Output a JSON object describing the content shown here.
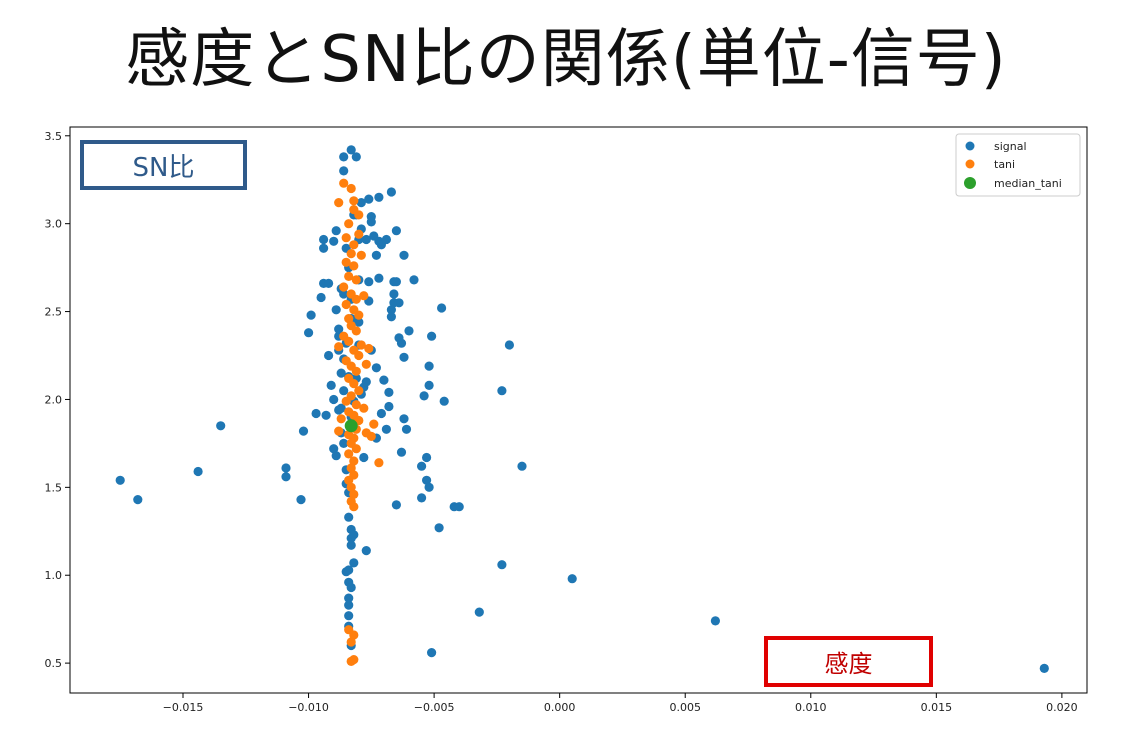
{
  "slide_title": "感度とSN比の関係(単位-信号)",
  "callouts": {
    "y_axis_label": "SN比",
    "x_axis_label": "感度"
  },
  "colors": {
    "signal": "#1f77b4",
    "tani": "#ff7f0e",
    "median_tani": "#2ca02c",
    "ylabel_box": "#2f5a8a",
    "xlabel_box": "#e00000"
  },
  "chart_data": {
    "type": "scatter",
    "title": "",
    "xlabel": "感度",
    "ylabel": "SN比",
    "xlim": [
      -0.0195,
      0.021
    ],
    "ylim": [
      0.33,
      3.55
    ],
    "xticks": [
      -0.015,
      -0.01,
      -0.005,
      0.0,
      0.005,
      0.01,
      0.015,
      0.02
    ],
    "xtick_labels": [
      "−0.015",
      "−0.010",
      "−0.005",
      "0.000",
      "0.005",
      "0.010",
      "0.015",
      "0.020"
    ],
    "yticks": [
      0.5,
      1.0,
      1.5,
      2.0,
      2.5,
      3.0,
      3.5
    ],
    "ytick_labels": [
      "0.5",
      "1.0",
      "1.5",
      "2.0",
      "2.5",
      "3.0",
      "3.5"
    ],
    "grid": false,
    "legend_position": "top-right",
    "series": [
      {
        "name": "signal",
        "color": "#1f77b4",
        "points": [
          [
            -0.0175,
            1.54
          ],
          [
            -0.0168,
            1.43
          ],
          [
            -0.0144,
            1.59
          ],
          [
            -0.0135,
            1.85
          ],
          [
            -0.0109,
            1.61
          ],
          [
            -0.0109,
            1.56
          ],
          [
            -0.0103,
            1.43
          ],
          [
            -0.0102,
            1.82
          ],
          [
            -0.01,
            2.38
          ],
          [
            -0.0099,
            2.48
          ],
          [
            -0.0097,
            1.92
          ],
          [
            -0.0095,
            2.58
          ],
          [
            -0.0094,
            2.66
          ],
          [
            -0.0094,
            2.86
          ],
          [
            -0.0094,
            2.91
          ],
          [
            -0.0093,
            1.91
          ],
          [
            -0.0092,
            2.66
          ],
          [
            -0.0092,
            2.25
          ],
          [
            -0.0091,
            2.08
          ],
          [
            -0.009,
            2.9
          ],
          [
            -0.009,
            1.72
          ],
          [
            -0.009,
            2.0
          ],
          [
            -0.0089,
            1.68
          ],
          [
            -0.0089,
            2.96
          ],
          [
            -0.0089,
            2.51
          ],
          [
            -0.0088,
            2.28
          ],
          [
            -0.0088,
            2.36
          ],
          [
            -0.0088,
            2.4
          ],
          [
            -0.0088,
            1.94
          ],
          [
            -0.0087,
            2.63
          ],
          [
            -0.0087,
            2.15
          ],
          [
            -0.0087,
            1.95
          ],
          [
            -0.0087,
            1.81
          ],
          [
            -0.0086,
            3.38
          ],
          [
            -0.0086,
            3.3
          ],
          [
            -0.0086,
            2.6
          ],
          [
            -0.0086,
            2.23
          ],
          [
            -0.0086,
            2.05
          ],
          [
            -0.0086,
            1.75
          ],
          [
            -0.0085,
            1.02
          ],
          [
            -0.0085,
            2.86
          ],
          [
            -0.0085,
            1.6
          ],
          [
            -0.0085,
            2.32
          ],
          [
            -0.0085,
            1.52
          ],
          [
            -0.0084,
            2.13
          ],
          [
            -0.0084,
            1.03
          ],
          [
            -0.0084,
            0.96
          ],
          [
            -0.0084,
            0.87
          ],
          [
            -0.0084,
            0.83
          ],
          [
            -0.0084,
            0.77
          ],
          [
            -0.0084,
            0.71
          ],
          [
            -0.0084,
            2.75
          ],
          [
            -0.0084,
            1.47
          ],
          [
            -0.0084,
            1.33
          ],
          [
            -0.0083,
            3.42
          ],
          [
            -0.0083,
            2.57
          ],
          [
            -0.0083,
            2.46
          ],
          [
            -0.0083,
            1.9
          ],
          [
            -0.0083,
            1.26
          ],
          [
            -0.0083,
            1.21
          ],
          [
            -0.0083,
            1.17
          ],
          [
            -0.0083,
            0.93
          ],
          [
            -0.0083,
            0.6
          ],
          [
            -0.0082,
            3.05
          ],
          [
            -0.0082,
            1.99
          ],
          [
            -0.0082,
            1.23
          ],
          [
            -0.0082,
            1.07
          ],
          [
            -0.0082,
            1.99
          ],
          [
            -0.0081,
            3.38
          ],
          [
            -0.0081,
            3.05
          ],
          [
            -0.0081,
            2.12
          ],
          [
            -0.008,
            2.91
          ],
          [
            -0.008,
            2.68
          ],
          [
            -0.008,
            2.44
          ],
          [
            -0.008,
            2.31
          ],
          [
            -0.0079,
            3.12
          ],
          [
            -0.0079,
            2.97
          ],
          [
            -0.0079,
            2.03
          ],
          [
            -0.0078,
            1.67
          ],
          [
            -0.0078,
            2.07
          ],
          [
            -0.0077,
            2.91
          ],
          [
            -0.0077,
            2.1
          ],
          [
            -0.0077,
            1.14
          ],
          [
            -0.0076,
            3.14
          ],
          [
            -0.0076,
            2.67
          ],
          [
            -0.0076,
            2.56
          ],
          [
            -0.0075,
            3.04
          ],
          [
            -0.0075,
            3.01
          ],
          [
            -0.0075,
            2.28
          ],
          [
            -0.0074,
            2.93
          ],
          [
            -0.0073,
            2.82
          ],
          [
            -0.0073,
            2.18
          ],
          [
            -0.0073,
            1.78
          ],
          [
            -0.0072,
            3.15
          ],
          [
            -0.0072,
            2.9
          ],
          [
            -0.0072,
            2.69
          ],
          [
            -0.0071,
            2.88
          ],
          [
            -0.0071,
            1.92
          ],
          [
            -0.007,
            2.11
          ],
          [
            -0.0069,
            1.83
          ],
          [
            -0.0069,
            2.91
          ],
          [
            -0.0068,
            2.04
          ],
          [
            -0.0068,
            1.96
          ],
          [
            -0.0067,
            3.18
          ],
          [
            -0.0067,
            2.47
          ],
          [
            -0.0067,
            2.51
          ],
          [
            -0.0066,
            2.67
          ],
          [
            -0.0066,
            2.6
          ],
          [
            -0.0066,
            2.55
          ],
          [
            -0.0065,
            2.96
          ],
          [
            -0.0065,
            2.67
          ],
          [
            -0.0065,
            1.4
          ],
          [
            -0.0064,
            2.55
          ],
          [
            -0.0064,
            2.35
          ],
          [
            -0.0063,
            1.7
          ],
          [
            -0.0063,
            2.32
          ],
          [
            -0.0062,
            2.24
          ],
          [
            -0.0062,
            2.82
          ],
          [
            -0.0062,
            1.89
          ],
          [
            -0.0061,
            1.83
          ],
          [
            -0.006,
            2.39
          ],
          [
            -0.0058,
            2.68
          ],
          [
            -0.0055,
            1.62
          ],
          [
            -0.0055,
            1.44
          ],
          [
            -0.0054,
            2.02
          ],
          [
            -0.0053,
            1.67
          ],
          [
            -0.0053,
            1.54
          ],
          [
            -0.0052,
            1.5
          ],
          [
            -0.0052,
            2.19
          ],
          [
            -0.0052,
            2.08
          ],
          [
            -0.0051,
            2.36
          ],
          [
            -0.0051,
            0.56
          ],
          [
            -0.0048,
            1.27
          ],
          [
            -0.0047,
            2.52
          ],
          [
            -0.0046,
            1.99
          ],
          [
            -0.0042,
            1.39
          ],
          [
            -0.004,
            1.39
          ],
          [
            -0.0032,
            0.79
          ],
          [
            -0.0023,
            2.05
          ],
          [
            -0.0023,
            1.06
          ],
          [
            -0.002,
            2.31
          ],
          [
            -0.0015,
            1.62
          ],
          [
            0.0005,
            0.98
          ],
          [
            0.0062,
            0.74
          ],
          [
            0.0193,
            0.47
          ]
        ]
      },
      {
        "name": "tani",
        "color": "#ff7f0e",
        "points": [
          [
            -0.0086,
            3.23
          ],
          [
            -0.0088,
            3.12
          ],
          [
            -0.0083,
            3.2
          ],
          [
            -0.0082,
            3.13
          ],
          [
            -0.0082,
            3.08
          ],
          [
            -0.0084,
            3.0
          ],
          [
            -0.008,
            3.05
          ],
          [
            -0.0085,
            2.92
          ],
          [
            -0.0082,
            2.88
          ],
          [
            -0.008,
            2.94
          ],
          [
            -0.0083,
            2.83
          ],
          [
            -0.0085,
            2.78
          ],
          [
            -0.0082,
            2.76
          ],
          [
            -0.0079,
            2.82
          ],
          [
            -0.0084,
            2.7
          ],
          [
            -0.0081,
            2.68
          ],
          [
            -0.0086,
            2.64
          ],
          [
            -0.0083,
            2.6
          ],
          [
            -0.0081,
            2.57
          ],
          [
            -0.0078,
            2.59
          ],
          [
            -0.0085,
            2.54
          ],
          [
            -0.0082,
            2.51
          ],
          [
            -0.0084,
            2.46
          ],
          [
            -0.008,
            2.48
          ],
          [
            -0.0083,
            2.42
          ],
          [
            -0.0081,
            2.39
          ],
          [
            -0.0086,
            2.36
          ],
          [
            -0.0084,
            2.33
          ],
          [
            -0.0088,
            2.3
          ],
          [
            -0.0079,
            2.31
          ],
          [
            -0.0082,
            2.28
          ],
          [
            -0.0076,
            2.29
          ],
          [
            -0.008,
            2.25
          ],
          [
            -0.0085,
            2.22
          ],
          [
            -0.0083,
            2.19
          ],
          [
            -0.0077,
            2.2
          ],
          [
            -0.0081,
            2.16
          ],
          [
            -0.0084,
            2.12
          ],
          [
            -0.0082,
            2.09
          ],
          [
            -0.008,
            2.05
          ],
          [
            -0.0083,
            2.02
          ],
          [
            -0.0085,
            1.99
          ],
          [
            -0.0081,
            1.97
          ],
          [
            -0.0078,
            1.95
          ],
          [
            -0.0084,
            1.93
          ],
          [
            -0.0082,
            1.91
          ],
          [
            -0.0087,
            1.89
          ],
          [
            -0.008,
            1.88
          ],
          [
            -0.0074,
            1.86
          ],
          [
            -0.0083,
            1.85
          ],
          [
            -0.0081,
            1.83
          ],
          [
            -0.0077,
            1.81
          ],
          [
            -0.0088,
            1.82
          ],
          [
            -0.0084,
            1.8
          ],
          [
            -0.0082,
            1.78
          ],
          [
            -0.0075,
            1.79
          ],
          [
            -0.0083,
            1.75
          ],
          [
            -0.0081,
            1.72
          ],
          [
            -0.0084,
            1.69
          ],
          [
            -0.0082,
            1.65
          ],
          [
            -0.0072,
            1.64
          ],
          [
            -0.0083,
            1.61
          ],
          [
            -0.0082,
            1.57
          ],
          [
            -0.0084,
            1.54
          ],
          [
            -0.0083,
            1.5
          ],
          [
            -0.0082,
            1.46
          ],
          [
            -0.0083,
            1.42
          ],
          [
            -0.0082,
            1.39
          ],
          [
            -0.0084,
            0.69
          ],
          [
            -0.0082,
            0.66
          ],
          [
            -0.0083,
            0.62
          ],
          [
            -0.0082,
            0.52
          ],
          [
            -0.0083,
            0.51
          ]
        ]
      },
      {
        "name": "median_tani",
        "color": "#2ca02c",
        "points": [
          [
            -0.0083,
            1.85
          ]
        ]
      }
    ]
  }
}
